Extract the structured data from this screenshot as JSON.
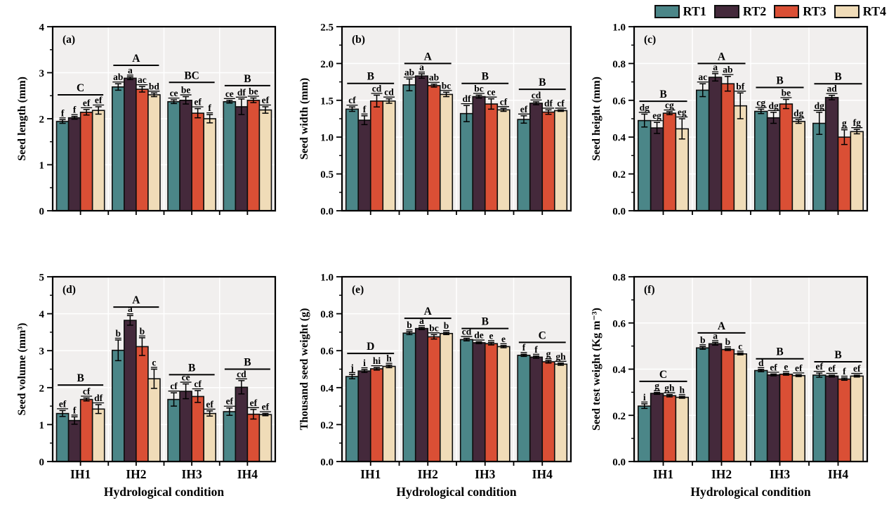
{
  "figure": {
    "xlabel": "Hydrological condition",
    "categories": [
      "IH1",
      "IH2",
      "IH3",
      "IH4"
    ],
    "series": [
      "RT1",
      "RT2",
      "RT3",
      "RT4"
    ],
    "plot_bg": "#f1efee",
    "grid_color": "#ffffff",
    "axis_color": "#000000"
  },
  "legend": {
    "items": [
      {
        "label": "RT1",
        "color": "#4b8688"
      },
      {
        "label": "RT2",
        "color": "#44293b"
      },
      {
        "label": "RT3",
        "color": "#da4f35"
      },
      {
        "label": "RT4",
        "color": "#f0dcb8"
      }
    ]
  },
  "chart_data": [
    {
      "type": "bar",
      "tag": "(a)",
      "ylabel": "Seed length (mm)",
      "ylim": [
        0,
        4
      ],
      "yticks": {
        "values": [
          0,
          1,
          2,
          3,
          4
        ],
        "labels": [
          "0",
          "1",
          "2",
          "3",
          "4"
        ],
        "minor_step": 0.5
      },
      "show_x_labels": false,
      "groups": [
        {
          "category": "IH1",
          "sig": "C",
          "sig_y": 2.52,
          "values": [
            1.94,
            2.02,
            2.14,
            2.18
          ],
          "errors": [
            0.04,
            0.03,
            0.06,
            0.08
          ],
          "letters": [
            "f",
            "f",
            "ef",
            "ef"
          ]
        },
        {
          "category": "IH2",
          "sig": "A",
          "sig_y": 3.16,
          "values": [
            2.69,
            2.88,
            2.64,
            2.52
          ],
          "errors": [
            0.07,
            0.03,
            0.06,
            0.04
          ],
          "letters": [
            "ab",
            "a",
            "ac",
            "bd"
          ]
        },
        {
          "category": "IH3",
          "sig": "BC",
          "sig_y": 2.79,
          "values": [
            2.37,
            2.4,
            2.12,
            2.0
          ],
          "errors": [
            0.04,
            0.08,
            0.1,
            0.09
          ],
          "letters": [
            "ce",
            "be",
            "ef",
            "f"
          ]
        },
        {
          "category": "IH4",
          "sig": "B",
          "sig_y": 2.72,
          "values": [
            2.37,
            2.26,
            2.4,
            2.19
          ],
          "errors": [
            0.03,
            0.17,
            0.05,
            0.07
          ],
          "letters": [
            "ce",
            "df",
            "be",
            "ef"
          ]
        }
      ]
    },
    {
      "type": "bar",
      "tag": "(b)",
      "ylabel": "Seed width (mm)",
      "ylim": [
        0,
        2.5
      ],
      "yticks": {
        "values": [
          0,
          0.5,
          1.0,
          1.5,
          2.0,
          2.5
        ],
        "labels": [
          "0.0",
          "0.5",
          "1.0",
          "1.5",
          "2.0",
          "2.5"
        ],
        "minor_step": 0.25
      },
      "show_x_labels": false,
      "groups": [
        {
          "category": "IH1",
          "sig": "B",
          "sig_y": 1.73,
          "values": [
            1.38,
            1.23,
            1.49,
            1.49
          ],
          "errors": [
            0.03,
            0.06,
            0.08,
            0.03
          ],
          "letters": [
            "cf",
            "f",
            "cd",
            "cd"
          ]
        },
        {
          "category": "IH2",
          "sig": "A",
          "sig_y": 2.0,
          "values": [
            1.71,
            1.83,
            1.7,
            1.58
          ],
          "errors": [
            0.08,
            0.03,
            0.02,
            0.03
          ],
          "letters": [
            "ab",
            "a",
            "ab",
            "bc"
          ]
        },
        {
          "category": "IH3",
          "sig": "B",
          "sig_y": 1.73,
          "values": [
            1.32,
            1.55,
            1.45,
            1.37
          ],
          "errors": [
            0.11,
            0.02,
            0.07,
            0.02
          ],
          "letters": [
            "df",
            "bc",
            "ce",
            "cf"
          ]
        },
        {
          "category": "IH4",
          "sig": "B",
          "sig_y": 1.65,
          "values": [
            1.24,
            1.46,
            1.34,
            1.36
          ],
          "errors": [
            0.05,
            0.02,
            0.03,
            0.01
          ],
          "letters": [
            "ef",
            "cd",
            "df",
            "cf"
          ]
        }
      ]
    },
    {
      "type": "bar",
      "tag": "(c)",
      "ylabel": "Seed height (mm)",
      "ylim": [
        0,
        1.0
      ],
      "yticks": {
        "values": [
          0,
          0.2,
          0.4,
          0.6,
          0.8,
          1.0
        ],
        "labels": [
          "0.0",
          "0.2",
          "0.4",
          "0.6",
          "0.8",
          "1.0"
        ],
        "minor_step": 0.1
      },
      "show_x_labels": false,
      "groups": [
        {
          "category": "IH1",
          "sig": "B",
          "sig_y": 0.595,
          "values": [
            0.49,
            0.45,
            0.53,
            0.445
          ],
          "errors": [
            0.035,
            0.03,
            0.008,
            0.055
          ],
          "letters": [
            "dg",
            "eg",
            "cg",
            "eg"
          ]
        },
        {
          "category": "IH2",
          "sig": "A",
          "sig_y": 0.8,
          "values": [
            0.655,
            0.725,
            0.69,
            0.57
          ],
          "errors": [
            0.035,
            0.02,
            0.04,
            0.07
          ],
          "letters": [
            "ac",
            "a",
            "ab",
            "bf"
          ]
        },
        {
          "category": "IH3",
          "sig": "B",
          "sig_y": 0.67,
          "values": [
            0.54,
            0.505,
            0.58,
            0.485
          ],
          "errors": [
            0.012,
            0.03,
            0.025,
            0.01
          ],
          "letters": [
            "cg",
            "dg",
            "be",
            "dg"
          ]
        },
        {
          "category": "IH4",
          "sig": "B",
          "sig_y": 0.69,
          "values": [
            0.475,
            0.615,
            0.4,
            0.43
          ],
          "errors": [
            0.06,
            0.012,
            0.04,
            0.012
          ],
          "letters": [
            "dg",
            "ad",
            "g",
            "fg"
          ]
        }
      ]
    },
    {
      "type": "bar",
      "tag": "(d)",
      "ylabel": "Seed volume (mm³)",
      "ylim": [
        0,
        5
      ],
      "yticks": {
        "values": [
          0,
          1,
          2,
          3,
          4,
          5
        ],
        "labels": [
          "0",
          "1",
          "2",
          "3",
          "4",
          "5"
        ],
        "minor_step": 0.5
      },
      "show_x_labels": true,
      "groups": [
        {
          "category": "IH1",
          "sig": "B",
          "sig_y": 2.07,
          "values": [
            1.3,
            1.11,
            1.68,
            1.42
          ],
          "errors": [
            0.08,
            0.1,
            0.04,
            0.12
          ],
          "letters": [
            "ef",
            "f",
            "cf",
            "df"
          ]
        },
        {
          "category": "IH2",
          "sig": "A",
          "sig_y": 4.18,
          "values": [
            3.01,
            3.82,
            3.11,
            2.24
          ],
          "errors": [
            0.28,
            0.13,
            0.24,
            0.26
          ],
          "letters": [
            "b",
            "a",
            "b",
            "c"
          ]
        },
        {
          "category": "IH3",
          "sig": "B",
          "sig_y": 2.35,
          "values": [
            1.68,
            1.9,
            1.76,
            1.3
          ],
          "errors": [
            0.18,
            0.2,
            0.16,
            0.07
          ],
          "letters": [
            "cf",
            "ce",
            "cf",
            "ef"
          ]
        },
        {
          "category": "IH4",
          "sig": "B",
          "sig_y": 2.5,
          "values": [
            1.35,
            2.01,
            1.28,
            1.27
          ],
          "errors": [
            0.1,
            0.18,
            0.13,
            0.03
          ],
          "letters": [
            "ef",
            "cd",
            "ef",
            "ef"
          ]
        }
      ]
    },
    {
      "type": "bar",
      "tag": "(e)",
      "ylabel": "Thousand seed weight (g)",
      "ylim": [
        0,
        1.0
      ],
      "yticks": {
        "values": [
          0,
          0.2,
          0.4,
          0.6,
          0.8,
          1.0
        ],
        "labels": [
          "0.0",
          "0.2",
          "0.4",
          "0.6",
          "0.8",
          "1.0"
        ],
        "minor_step": 0.1
      },
      "show_x_labels": true,
      "groups": [
        {
          "category": "IH1",
          "sig": "D",
          "sig_y": 0.585,
          "values": [
            0.46,
            0.49,
            0.502,
            0.515
          ],
          "errors": [
            0.012,
            0.008,
            0.007,
            0.007
          ],
          "letters": [
            "j",
            "i",
            "hi",
            "h"
          ]
        },
        {
          "category": "IH2",
          "sig": "A",
          "sig_y": 0.775,
          "values": [
            0.695,
            0.72,
            0.675,
            0.693
          ],
          "errors": [
            0.008,
            0.006,
            0.012,
            0.006
          ],
          "letters": [
            "b",
            "a",
            "bc",
            "b"
          ]
        },
        {
          "category": "IH3",
          "sig": "B",
          "sig_y": 0.72,
          "values": [
            0.66,
            0.643,
            0.638,
            0.622
          ],
          "errors": [
            0.007,
            0.005,
            0.007,
            0.006
          ],
          "letters": [
            "cd",
            "de",
            "e",
            "e"
          ]
        },
        {
          "category": "IH4",
          "sig": "C",
          "sig_y": 0.645,
          "values": [
            0.575,
            0.565,
            0.54,
            0.527
          ],
          "errors": [
            0.006,
            0.006,
            0.007,
            0.006
          ],
          "letters": [
            "f",
            "f",
            "g",
            "gh"
          ]
        }
      ]
    },
    {
      "type": "bar",
      "tag": "(f)",
      "ylabel": "Seed test weight (Kg m⁻³)",
      "ylim": [
        0,
        0.8
      ],
      "yticks": {
        "values": [
          0,
          0.2,
          0.4,
          0.6,
          0.8
        ],
        "labels": [
          "0.0",
          "0.2",
          "0.4",
          "0.6",
          "0.8"
        ],
        "minor_step": 0.1
      },
      "show_x_labels": true,
      "groups": [
        {
          "category": "IH1",
          "sig": "C",
          "sig_y": 0.347,
          "values": [
            0.24,
            0.295,
            0.285,
            0.278
          ],
          "errors": [
            0.01,
            0.004,
            0.005,
            0.004
          ],
          "letters": [
            "i",
            "g",
            "gh",
            "h"
          ]
        },
        {
          "category": "IH2",
          "sig": "A",
          "sig_y": 0.557,
          "values": [
            0.492,
            0.51,
            0.485,
            0.466
          ],
          "errors": [
            0.006,
            0.006,
            0.004,
            0.004
          ],
          "letters": [
            "b",
            "a",
            "b",
            "c"
          ]
        },
        {
          "category": "IH3",
          "sig": "B",
          "sig_y": 0.445,
          "values": [
            0.394,
            0.375,
            0.378,
            0.372
          ],
          "errors": [
            0.005,
            0.004,
            0.004,
            0.004
          ],
          "letters": [
            "d",
            "ef",
            "e",
            "ef"
          ]
        },
        {
          "category": "IH4",
          "sig": "B",
          "sig_y": 0.432,
          "values": [
            0.374,
            0.37,
            0.357,
            0.37
          ],
          "errors": [
            0.009,
            0.004,
            0.005,
            0.004
          ],
          "letters": [
            "ef",
            "ef",
            "f",
            "ef"
          ]
        }
      ]
    }
  ]
}
